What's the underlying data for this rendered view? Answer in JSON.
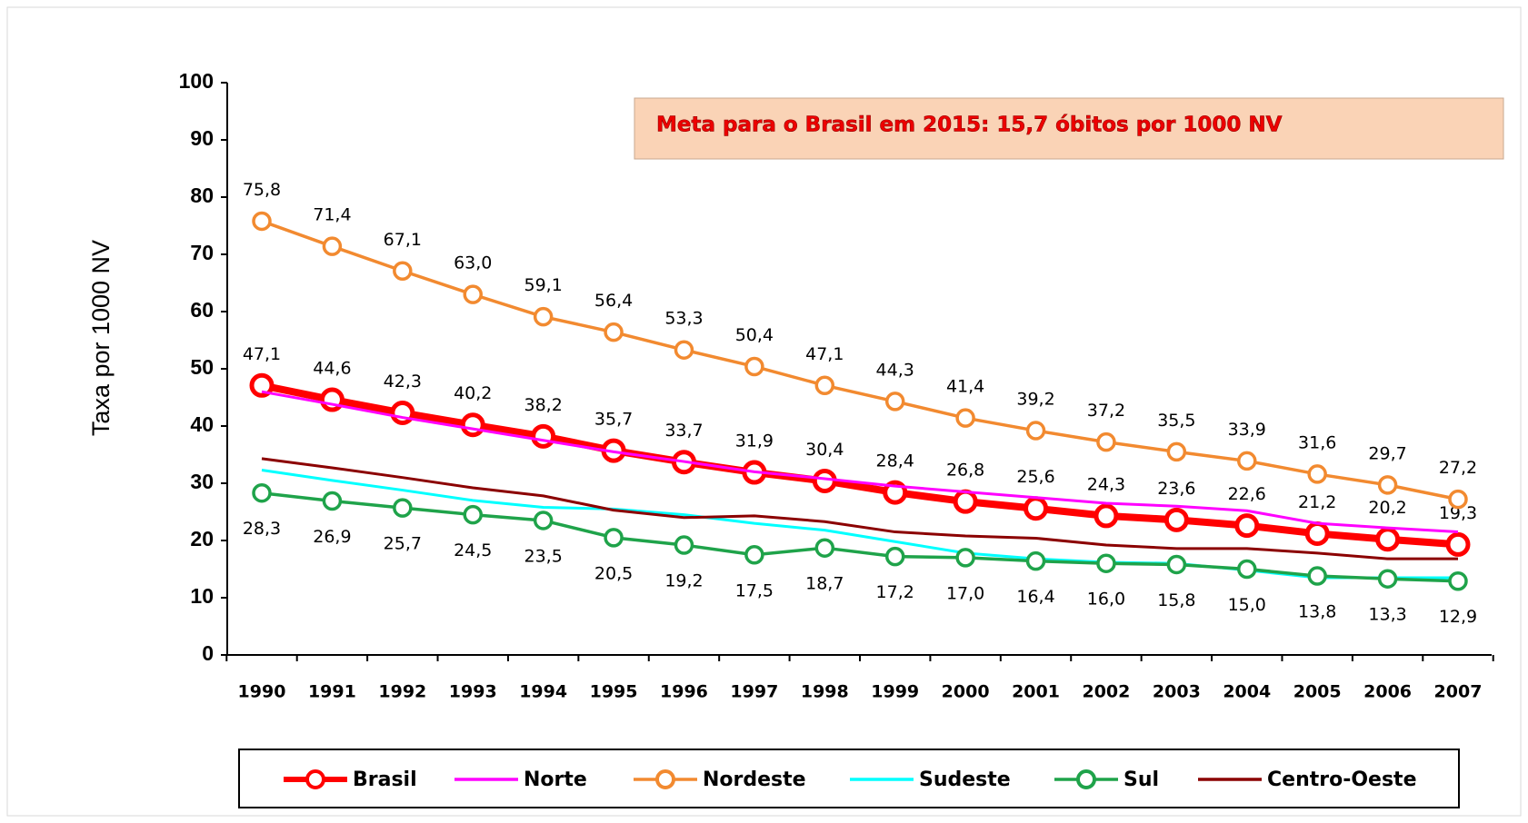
{
  "chart_data": {
    "type": "line",
    "annotation": "Meta para o Brasil em 2015:  15,7 óbitos por 1000 NV",
    "y_label": "Taxa por 1000 NV",
    "categories": [
      "1990",
      "1991",
      "1992",
      "1993",
      "1994",
      "1995",
      "1996",
      "1997",
      "1998",
      "1999",
      "2000",
      "2001",
      "2002",
      "2003",
      "2004",
      "2005",
      "2006",
      "2007"
    ],
    "ylim": [
      0,
      100
    ],
    "yticks": [
      0,
      10,
      20,
      30,
      40,
      50,
      60,
      70,
      80,
      90,
      100
    ],
    "series": [
      {
        "name": "Brasil",
        "color": "#ff0000",
        "marker": true,
        "label_position": "above",
        "values": [
          47.1,
          44.6,
          42.3,
          40.2,
          38.2,
          35.7,
          33.7,
          31.9,
          30.4,
          28.4,
          26.8,
          25.6,
          24.3,
          23.6,
          22.6,
          21.2,
          20.2,
          19.3
        ],
        "value_labels": [
          "47,1",
          "44,6",
          "42,3",
          "40,2",
          "38,2",
          "35,7",
          "33,7",
          "31,9",
          "30,4",
          "28,4",
          "26,8",
          "25,6",
          "24,3",
          "23,6",
          "22,6",
          "21,2",
          "20,2",
          "19,3"
        ]
      },
      {
        "name": "Norte",
        "color": "#ff00ff",
        "marker": false,
        "values": [
          46,
          43.8,
          41.5,
          39.5,
          37.5,
          35.5,
          33.8,
          32,
          30.8,
          29.5,
          28.5,
          27.5,
          26.5,
          26,
          25.2,
          23,
          22.2,
          21.5
        ]
      },
      {
        "name": "Nordeste",
        "color": "#f28a30",
        "marker": true,
        "label_position": "above",
        "values": [
          75.8,
          71.4,
          67.1,
          63.0,
          59.1,
          56.4,
          53.3,
          50.4,
          47.1,
          44.3,
          41.4,
          39.2,
          37.2,
          35.5,
          33.9,
          31.6,
          29.7,
          27.2
        ],
        "value_labels": [
          "75,8",
          "71,4",
          "67,1",
          "63,0",
          "59,1",
          "56,4",
          "53,3",
          "50,4",
          "47,1",
          "44,3",
          "41,4",
          "39,2",
          "37,2",
          "35,5",
          "33,9",
          "31,6",
          "29,7",
          "27,2"
        ]
      },
      {
        "name": "Sudeste",
        "color": "#00ffff",
        "marker": false,
        "values": [
          32.3,
          30.5,
          28.8,
          27,
          25.8,
          25.5,
          24.5,
          23,
          21.8,
          19.8,
          17.8,
          16.8,
          16.2,
          16,
          14.8,
          13.5,
          13.5,
          13.5
        ]
      },
      {
        "name": "Sul",
        "color": "#1fa34a",
        "marker": true,
        "label_position": "below",
        "values": [
          28.3,
          26.9,
          25.7,
          24.5,
          23.5,
          20.5,
          19.2,
          17.5,
          18.7,
          17.2,
          17.0,
          16.4,
          16.0,
          15.8,
          15.0,
          13.8,
          13.3,
          12.9
        ],
        "value_labels": [
          "28,3",
          "26,9",
          "25,7",
          "24,5",
          "23,5",
          "20,5",
          "19,2",
          "17,5",
          "18,7",
          "17,2",
          "17,0",
          "16,4",
          "16,0",
          "15,8",
          "15,0",
          "13,8",
          "13,3",
          "12,9"
        ]
      },
      {
        "name": "Centro-Oeste",
        "color": "#8b0000",
        "marker": false,
        "values": [
          34.3,
          32.7,
          31,
          29.2,
          27.8,
          25.3,
          24,
          24.3,
          23.3,
          21.5,
          20.8,
          20.4,
          19.2,
          18.6,
          18.6,
          17.8,
          16.8,
          16.8
        ]
      }
    ]
  }
}
